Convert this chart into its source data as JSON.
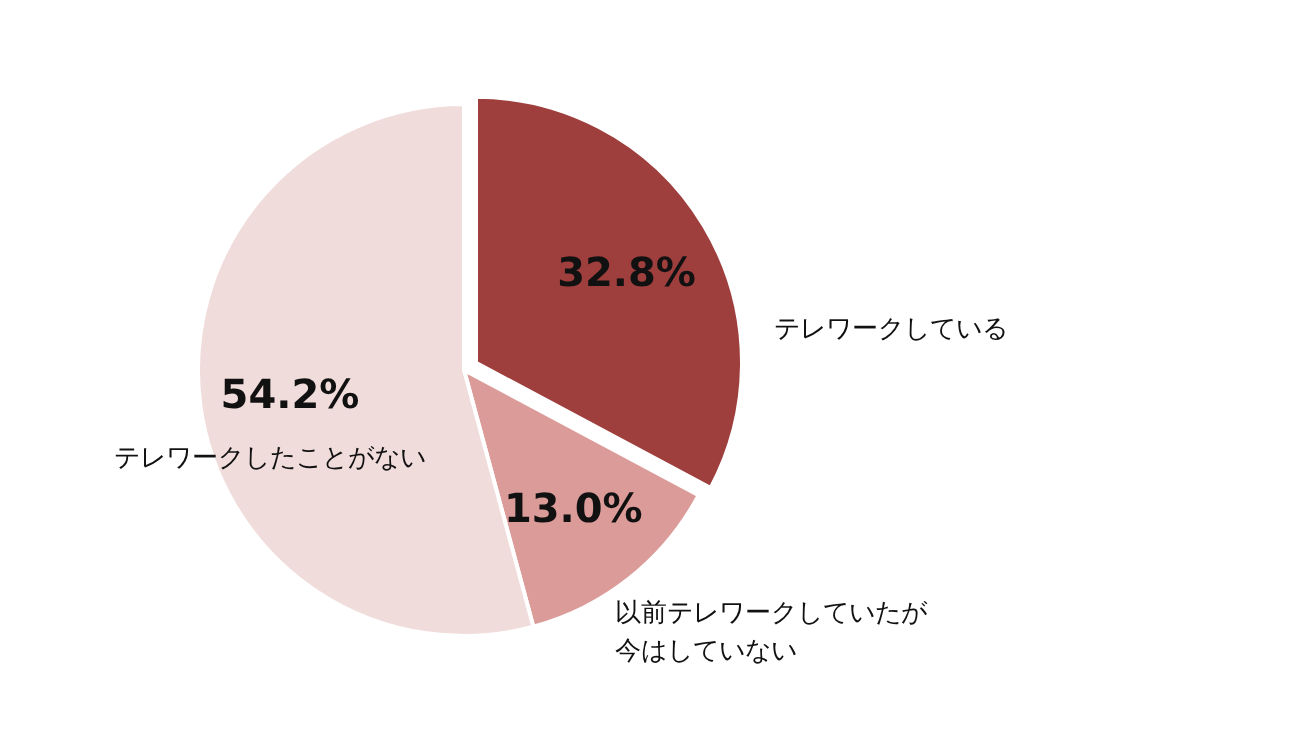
{
  "chart_data": {
    "type": "pie",
    "categories": [
      "テレワークしている",
      "以前テレワークしていたが今はしていない",
      "テレワークしたことがない"
    ],
    "values": [
      32.8,
      13.0,
      54.2
    ],
    "colors": [
      "#9e3f3d",
      "#db9b99",
      "#f1dcdc"
    ],
    "value_labels": [
      "32.8%",
      "13.0%",
      "54.2%"
    ]
  }
}
